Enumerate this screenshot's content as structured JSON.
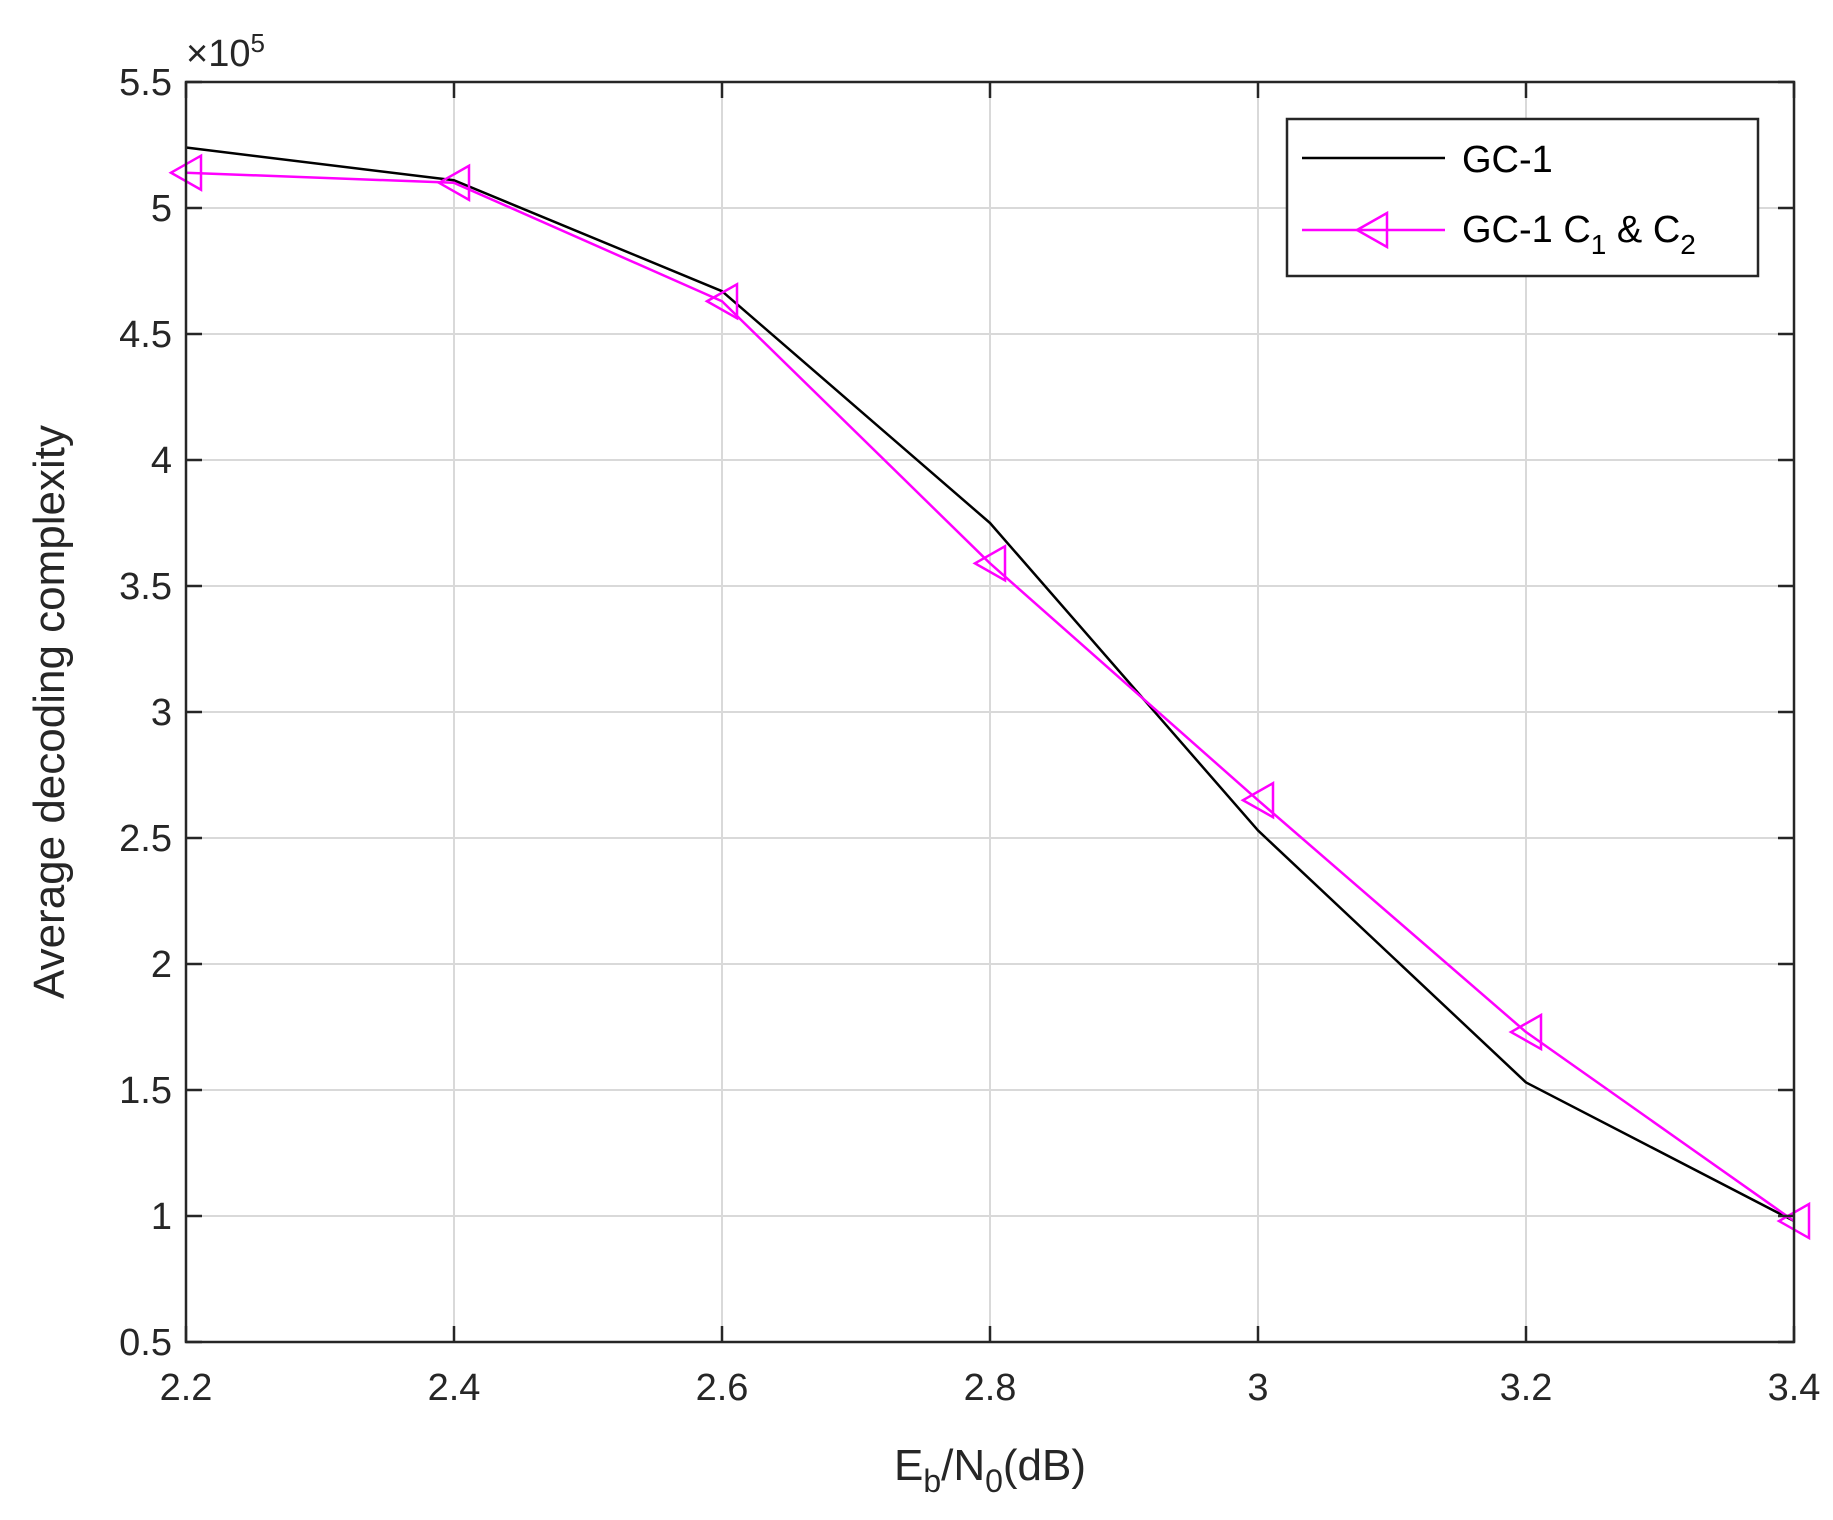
{
  "chart_data": {
    "type": "line",
    "title": "",
    "xlabel": {
      "main": "E",
      "sub1": "b",
      "mid": "/N",
      "sub2": "0",
      "tail": "(dB)"
    },
    "ylabel": "Average decoding complexity",
    "y_exponent": {
      "base": "×10",
      "power": "5"
    },
    "xlim": [
      2.2,
      3.4
    ],
    "ylim": [
      0.5,
      5.5
    ],
    "x_ticks": [
      2.2,
      2.4,
      2.6,
      2.8,
      3.0,
      3.2,
      3.4
    ],
    "x_tick_labels": [
      "2.2",
      "2.4",
      "2.6",
      "2.8",
      "3",
      "3.2",
      "3.4"
    ],
    "y_ticks": [
      0.5,
      1,
      1.5,
      2,
      2.5,
      3,
      3.5,
      4,
      4.5,
      5,
      5.5
    ],
    "y_tick_labels": [
      "0.5",
      "1",
      "1.5",
      "2",
      "2.5",
      "3",
      "3.5",
      "4",
      "4.5",
      "5",
      "5.5"
    ],
    "grid": true,
    "legend_position": "top-right",
    "series": [
      {
        "name": "GC-1",
        "color": "#000000",
        "marker": "none",
        "x": [
          2.2,
          2.4,
          2.6,
          2.8,
          3.0,
          3.2,
          3.4
        ],
        "y": [
          5.24,
          5.11,
          4.67,
          3.75,
          2.53,
          1.53,
          0.98
        ]
      },
      {
        "name": "GC-1 C1 & C2",
        "legend_parts": {
          "a": "GC-1 C",
          "s1": "1",
          "b": " & C",
          "s2": "2"
        },
        "color": "#ff00ff",
        "marker": "left-triangle",
        "x": [
          2.2,
          2.4,
          2.6,
          2.8,
          3.0,
          3.2,
          3.4
        ],
        "y": [
          5.14,
          5.1,
          4.63,
          3.59,
          2.65,
          1.73,
          0.98
        ]
      }
    ]
  }
}
